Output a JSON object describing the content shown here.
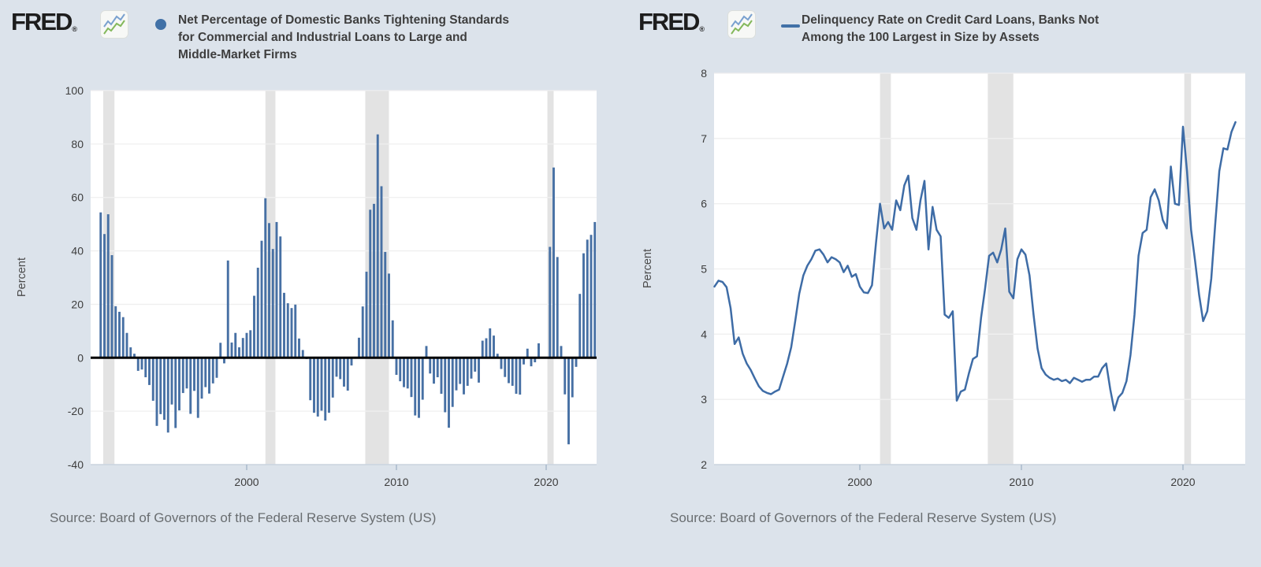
{
  "page": {
    "background": "#dce3eb"
  },
  "branding": {
    "logo_text": "FRED",
    "registered_mark": "®"
  },
  "colors": {
    "accent_blue": "#4171a7",
    "bar": "#4770a4",
    "line": "#3e6ca6",
    "plot_bg": "#ffffff",
    "grid": "#efefef",
    "recession_band": "#e3e3e3",
    "zero_line": "#000000",
    "axis_line": "#c9d3df",
    "tick_mark": "#a9b9cb",
    "logo_icon_blue": "#7aa1cf",
    "logo_icon_green": "#84b85c"
  },
  "panels": [
    {
      "id": "tightening-standards",
      "legend_marker": "circle",
      "title_lines": [
        "Net Percentage of Domestic Banks Tightening Standards",
        "for Commercial and Industrial Loans to Large and",
        "Middle-Market Firms"
      ],
      "ylabel": "Percent",
      "source": "Source: Board of Governors of the Federal Reserve System (US)"
    },
    {
      "id": "delinquency-rate",
      "legend_marker": "line",
      "title_lines": [
        "Delinquency Rate on Credit Card Loans, Banks Not",
        "Among the 100 Largest in Size by Assets"
      ],
      "ylabel": "Percent",
      "source": "Source: Board of Governors of the Federal Reserve System (US)"
    }
  ],
  "chart_data": [
    {
      "type": "bar",
      "title": "Net Percentage of Domestic Banks Tightening Standards for Commercial and Industrial Loans to Large and Middle-Market Firms",
      "ylabel": "Percent",
      "xlabel": "",
      "frequency": "quarterly",
      "start_year": 1990.25,
      "x_step_years": 0.25,
      "ylim": [
        -40,
        100
      ],
      "yticks": [
        100,
        80,
        60,
        40,
        20,
        0,
        -20,
        -40
      ],
      "xticks": [
        2000,
        2010,
        2020
      ],
      "grid": true,
      "legend_position": "top",
      "recession_bands": [
        [
          1990.42,
          1991.17
        ],
        [
          2001.25,
          2001.92
        ],
        [
          2007.92,
          2009.5
        ],
        [
          2020.08,
          2020.5
        ]
      ],
      "values": [
        54.4,
        46.3,
        53.7,
        38.4,
        19.3,
        17.2,
        15.2,
        9.3,
        3.9,
        1.5,
        -4.9,
        -4.4,
        -7.3,
        -10.2,
        -16.1,
        -25.5,
        -21.1,
        -23.2,
        -28.0,
        -17.5,
        -26.3,
        -19.7,
        -13.2,
        -11.5,
        -21.0,
        -12.4,
        -22.5,
        -15.3,
        -11.0,
        -13.4,
        -9.6,
        -7.5,
        5.6,
        -2.1,
        36.4,
        5.7,
        9.3,
        3.9,
        7.4,
        9.3,
        10.3,
        23.2,
        33.7,
        43.8,
        59.7,
        50.4,
        40.7,
        50.8,
        45.4,
        24.3,
        20.4,
        18.6,
        19.9,
        7.2,
        2.9,
        -0.5,
        -15.9,
        -20.6,
        -22.0,
        -19.8,
        -23.5,
        -20.6,
        -14.9,
        -7.1,
        -8.0,
        -10.8,
        -12.3,
        -2.9,
        0.0,
        7.5,
        19.2,
        32.2,
        55.4,
        57.6,
        83.6,
        64.2,
        39.6,
        31.5,
        14.0,
        -6.4,
        -8.8,
        -11.0,
        -11.5,
        -14.7,
        -21.6,
        -22.5,
        -15.7,
        4.4,
        -5.9,
        -9.7,
        -7.3,
        -13.5,
        -20.4,
        -26.2,
        -18.4,
        -12.2,
        -9.8,
        -13.7,
        -10.5,
        -7.8,
        -5.2,
        -9.3,
        6.4,
        7.3,
        11.0,
        8.3,
        1.5,
        -4.2,
        -7.2,
        -9.5,
        -10.5,
        -13.5,
        -13.8,
        -2.5,
        3.4,
        -3.2,
        -1.7,
        5.4,
        0.0,
        0.0,
        41.5,
        71.2,
        37.7,
        4.4,
        -13.7,
        -32.4,
        -14.8,
        -3.4,
        23.9,
        39.1,
        44.2,
        46.0,
        50.8
      ]
    },
    {
      "type": "line",
      "title": "Delinquency Rate on Credit Card Loans, Banks Not Among the 100 Largest in Size by Assets",
      "ylabel": "Percent",
      "xlabel": "",
      "frequency": "quarterly",
      "start_year": 1991.0,
      "x_step_years": 0.25,
      "ylim": [
        2,
        8
      ],
      "yticks": [
        8,
        7,
        6,
        5,
        4,
        3,
        2
      ],
      "xticks": [
        2000,
        2010,
        2020
      ],
      "grid": true,
      "legend_position": "top",
      "recession_bands": [
        [
          2001.25,
          2001.92
        ],
        [
          2007.92,
          2009.5
        ],
        [
          2020.08,
          2020.5
        ]
      ],
      "values": [
        4.73,
        4.82,
        4.8,
        4.72,
        4.4,
        3.85,
        3.95,
        3.7,
        3.55,
        3.45,
        3.32,
        3.2,
        3.13,
        3.1,
        3.08,
        3.12,
        3.15,
        3.35,
        3.55,
        3.8,
        4.2,
        4.62,
        4.9,
        5.05,
        5.15,
        5.28,
        5.3,
        5.22,
        5.1,
        5.18,
        5.15,
        5.1,
        4.95,
        5.05,
        4.88,
        4.92,
        4.73,
        4.64,
        4.63,
        4.75,
        5.4,
        6.0,
        5.62,
        5.72,
        5.6,
        6.05,
        5.9,
        6.28,
        6.43,
        5.78,
        5.6,
        6.05,
        6.35,
        5.3,
        5.95,
        5.6,
        5.5,
        4.3,
        4.25,
        4.35,
        2.98,
        3.12,
        3.15,
        3.4,
        3.62,
        3.66,
        4.25,
        4.7,
        5.2,
        5.25,
        5.1,
        5.3,
        5.62,
        4.65,
        4.55,
        5.15,
        5.3,
        5.22,
        4.9,
        4.3,
        3.78,
        3.48,
        3.38,
        3.33,
        3.3,
        3.32,
        3.28,
        3.3,
        3.25,
        3.33,
        3.3,
        3.27,
        3.3,
        3.3,
        3.35,
        3.35,
        3.48,
        3.55,
        3.15,
        2.83,
        3.03,
        3.1,
        3.28,
        3.68,
        4.3,
        5.2,
        5.55,
        5.6,
        6.1,
        6.22,
        6.05,
        5.75,
        5.62,
        6.57,
        6.0,
        5.98,
        7.18,
        6.5,
        5.6,
        5.12,
        4.6,
        4.2,
        4.35,
        4.85,
        5.7,
        6.5,
        6.85,
        6.83,
        7.1,
        7.25
      ]
    }
  ]
}
